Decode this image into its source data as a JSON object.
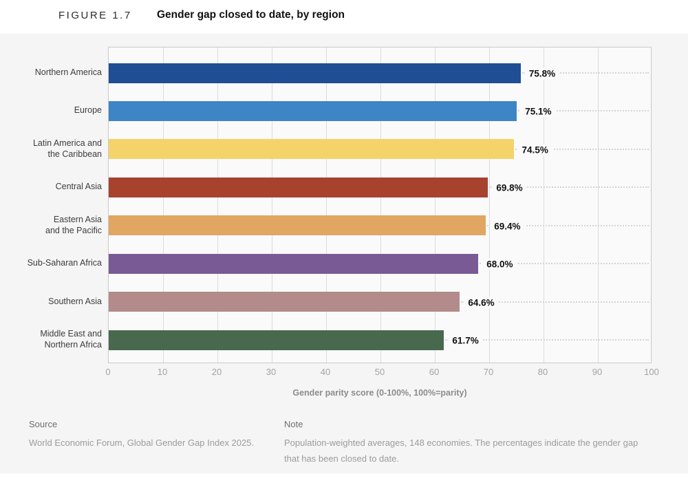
{
  "figure": {
    "label": "FIGURE 1.7",
    "title": "Gender gap closed to date, by region"
  },
  "chart_data": {
    "type": "bar",
    "orientation": "horizontal",
    "title": "Gender gap closed to date, by region",
    "xlabel": "Gender parity score (0-100%, 100%=parity)",
    "ylabel": "",
    "xlim": [
      0,
      100
    ],
    "xticks": [
      0,
      10,
      20,
      30,
      40,
      50,
      60,
      70,
      80,
      90,
      100
    ],
    "grid": "vertical",
    "legend": "none",
    "categories": [
      "Northern America",
      "Europe",
      "Latin America and the Caribbean",
      "Central Asia",
      "Eastern Asia and the Pacific",
      "Sub-Saharan Africa",
      "Southern Asia",
      "Middle East and Northern Africa"
    ],
    "category_lines": [
      [
        "Northern America"
      ],
      [
        "Europe"
      ],
      [
        "Latin America and",
        "the Caribbean"
      ],
      [
        "Central Asia"
      ],
      [
        "Eastern Asia",
        "and the Pacific"
      ],
      [
        "Sub-Saharan Africa"
      ],
      [
        "Southern Asia"
      ],
      [
        "Middle East and",
        "Northern Africa"
      ]
    ],
    "values": [
      75.8,
      75.1,
      74.5,
      69.8,
      69.4,
      68.0,
      64.6,
      61.7
    ],
    "value_labels": [
      "75.8%",
      "75.1%",
      "74.5%",
      "69.8%",
      "69.4%",
      "68.0%",
      "64.6%",
      "61.7%"
    ],
    "bar_colors": [
      "#1f4e94",
      "#3e85c6",
      "#f5d36b",
      "#a7422f",
      "#e0a662",
      "#7a5a94",
      "#b28b8a",
      "#49694f"
    ]
  },
  "footer": {
    "source_heading": "Source",
    "source_text": "World Economic Forum, Global Gender Gap Index 2025.",
    "note_heading": "Note",
    "note_text": "Population-weighted averages, 148 economies. The percentages indicate the gender gap that has been closed to date."
  }
}
